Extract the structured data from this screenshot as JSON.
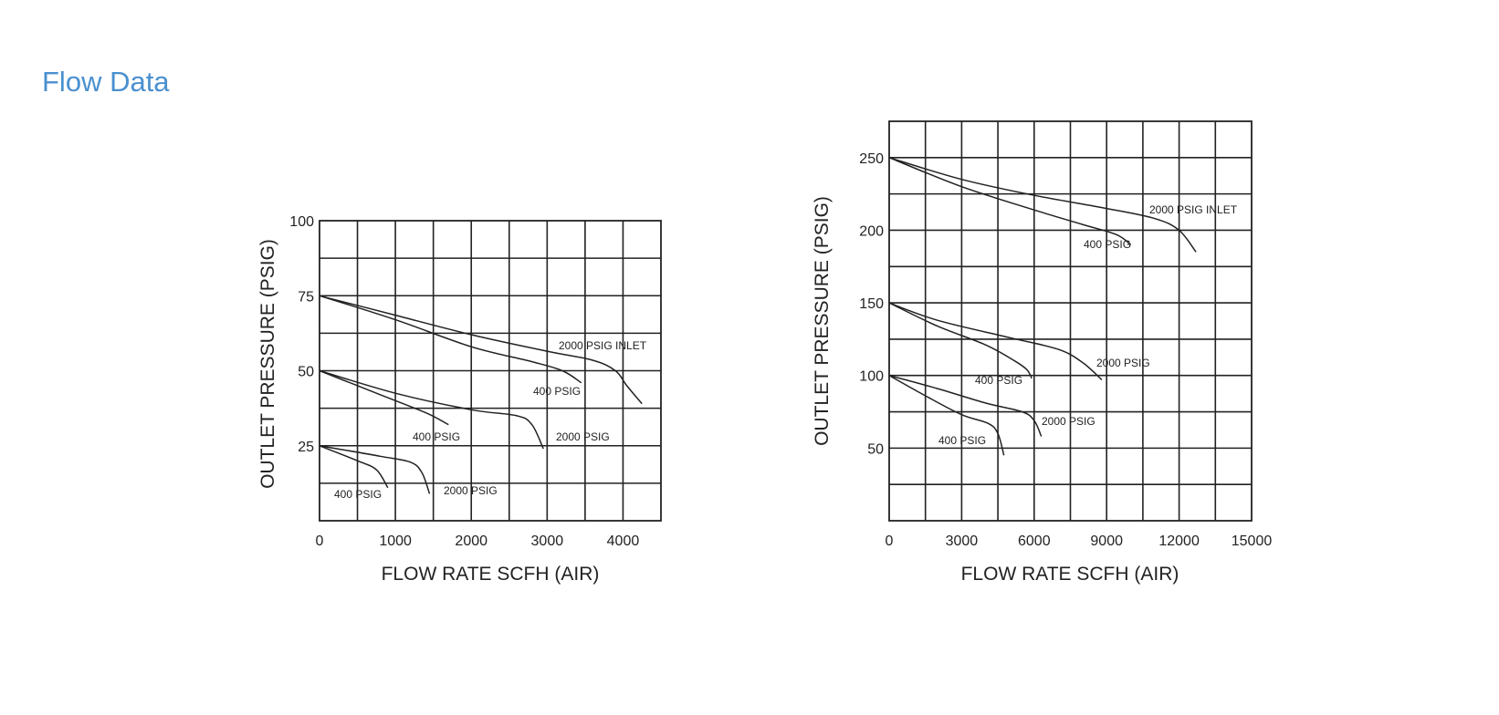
{
  "page": {
    "title": "Flow Data"
  },
  "chart_data": [
    {
      "type": "line",
      "title": "",
      "xlabel": "FLOW  RATE SCFH (AIR)",
      "ylabel": "OUTLET  PRESSURE (PSIG)",
      "xlim": [
        0,
        4500
      ],
      "ylim": [
        0,
        100
      ],
      "x_ticks": [
        0,
        1000,
        2000,
        3000,
        4000
      ],
      "x_tick_labels": [
        "0",
        "1000",
        "2000",
        "3000",
        "4000"
      ],
      "y_ticks": [
        25,
        50,
        75,
        100
      ],
      "y_tick_labels": [
        "25",
        "50",
        "75",
        "100"
      ],
      "grid": true,
      "series": [
        {
          "name": "2000 PSIG INLET",
          "x": [
            0,
            1000,
            2000,
            3000,
            3600,
            3900,
            4050,
            4250
          ],
          "y": [
            75,
            68.5,
            62,
            56.5,
            53.5,
            50,
            45,
            39
          ]
        },
        {
          "name": "400 PSIG",
          "x": [
            0,
            1000,
            2000,
            2800,
            3200,
            3450
          ],
          "y": [
            75,
            67,
            58,
            53,
            50,
            46
          ]
        },
        {
          "name": "2000 PSIG",
          "x": [
            0,
            1000,
            2000,
            2600,
            2800,
            2950
          ],
          "y": [
            50,
            42.5,
            37,
            35,
            32,
            24
          ]
        },
        {
          "name": "400 PSIG",
          "x": [
            0,
            800,
            1400,
            1700
          ],
          "y": [
            50,
            42,
            36,
            32
          ]
        },
        {
          "name": "2000 PSIG",
          "x": [
            0,
            800,
            1200,
            1350,
            1450
          ],
          "y": [
            25,
            21.5,
            19.5,
            16,
            9
          ]
        },
        {
          "name": "400 PSIG",
          "x": [
            0,
            500,
            750,
            900
          ],
          "y": [
            25,
            20,
            17,
            11
          ]
        }
      ]
    },
    {
      "type": "line",
      "title": "",
      "xlabel": "FLOW  RATE SCFH (AIR)",
      "ylabel": "OUTLET  PRESSURE (PSIG)",
      "xlim": [
        0,
        15000
      ],
      "ylim": [
        0,
        275
      ],
      "x_ticks": [
        0,
        3000,
        6000,
        9000,
        12000,
        15000
      ],
      "x_tick_labels": [
        "0",
        "3000",
        "6000",
        "9000",
        "12000",
        "15000"
      ],
      "y_ticks": [
        50,
        100,
        150,
        200,
        250
      ],
      "y_tick_labels": [
        "50",
        "100",
        "150",
        "200",
        "250"
      ],
      "grid": true,
      "series": [
        {
          "name": "2000 PSIG INLET",
          "x": [
            0,
            3000,
            6000,
            9000,
            11000,
            12000,
            12700
          ],
          "y": [
            250,
            235,
            224,
            215,
            208,
            200,
            185
          ]
        },
        {
          "name": "400 PSIG",
          "x": [
            0,
            3000,
            6000,
            8000,
            9400,
            10000
          ],
          "y": [
            250,
            230,
            214,
            204,
            197,
            190
          ]
        },
        {
          "name": "2000 PSIG",
          "x": [
            0,
            2000,
            5000,
            7000,
            8000,
            8800
          ],
          "y": [
            150,
            138,
            126,
            118,
            109,
            97
          ]
        },
        {
          "name": "400 PSIG",
          "x": [
            0,
            2000,
            4000,
            5200,
            5700,
            5900
          ],
          "y": [
            150,
            134,
            121,
            110,
            104,
            98
          ]
        },
        {
          "name": "2000 PSIG",
          "x": [
            0,
            2000,
            4000,
            5500,
            6000,
            6300
          ],
          "y": [
            100,
            91,
            81,
            75,
            69,
            58
          ]
        },
        {
          "name": "400 PSIG",
          "x": [
            0,
            1500,
            3000,
            4100,
            4500,
            4750
          ],
          "y": [
            100,
            86,
            73,
            67,
            60,
            45
          ]
        }
      ]
    }
  ]
}
